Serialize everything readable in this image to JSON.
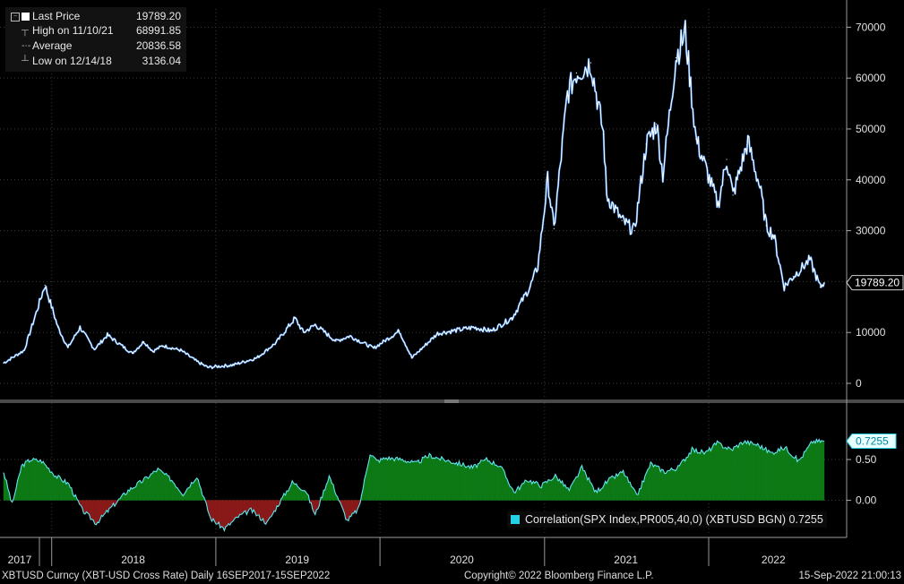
{
  "legend": {
    "last_price_label": "Last Price",
    "last_price_value": "19789.20",
    "high_label": "High on 11/10/21",
    "high_value": "68991.85",
    "average_label": "Average",
    "average_value": "20836.58",
    "low_label": "Low on 12/14/18",
    "low_value": "3136.04"
  },
  "footer": {
    "security": "XBTUSD Curncy (XBT-USD Cross Rate)  Daily 16SEP2017-15SEP2022",
    "copyright": "Copyright© 2022 Bloomberg Finance L.P.",
    "timestamp": "15-Sep-2022 21:00:13"
  },
  "correlation_legend": "Correlation(SPX Index,PR005,40,0) (XBTUSD BGN) 0.7255",
  "colors": {
    "price_line": "#ffffff",
    "price_line_accent": "#2f7de1",
    "corr_positive": "#0e7a16",
    "corr_negative": "#8a1a1a",
    "corr_line": "#5fe6f0",
    "corr_marker": "#24d2e8"
  },
  "chart_data": [
    {
      "type": "line",
      "series": [
        {
          "name": "Last Price",
          "x": [
            "2017-09-16",
            "2017-11-01",
            "2017-12-17",
            "2018-01-15",
            "2018-02-06",
            "2018-03-05",
            "2018-04-06",
            "2018-05-05",
            "2018-06-29",
            "2018-07-25",
            "2018-08-14",
            "2018-09-05",
            "2018-10-15",
            "2018-11-20",
            "2018-12-14",
            "2019-02-08",
            "2019-04-02",
            "2019-05-15",
            "2019-06-26",
            "2019-07-15",
            "2019-08-10",
            "2019-09-25",
            "2019-10-26",
            "2019-12-18",
            "2020-02-13",
            "2020-03-12",
            "2020-05-08",
            "2020-07-27",
            "2020-09-05",
            "2020-10-21",
            "2020-11-30",
            "2020-12-17",
            "2021-01-08",
            "2021-01-22",
            "2021-02-21",
            "2021-03-13",
            "2021-04-14",
            "2021-05-12",
            "2021-05-19",
            "2021-06-22",
            "2021-07-20",
            "2021-08-15",
            "2021-09-07",
            "2021-09-21",
            "2021-10-20",
            "2021-11-10",
            "2021-12-04",
            "2022-01-22",
            "2022-02-10",
            "2022-02-24",
            "2022-03-29",
            "2022-04-25",
            "2022-05-09",
            "2022-05-26",
            "2022-06-18",
            "2022-07-08",
            "2022-08-14",
            "2022-09-06",
            "2022-09-15"
          ],
          "values": [
            4000,
            6500,
            19300,
            11000,
            7000,
            11000,
            6700,
            9500,
            5900,
            8200,
            6300,
            7400,
            6500,
            4300,
            3136,
            3600,
            5000,
            8000,
            12800,
            10000,
            11500,
            8300,
            9300,
            6900,
            10300,
            5000,
            9800,
            11000,
            10300,
            12900,
            19000,
            23000,
            40000,
            30400,
            57000,
            61000,
            63000,
            49000,
            37000,
            32000,
            30000,
            47000,
            51000,
            41000,
            64000,
            68991,
            48000,
            35000,
            44000,
            37000,
            47500,
            38500,
            31000,
            29000,
            19000,
            21000,
            24300,
            18900,
            19789
          ]
        }
      ],
      "ylim": [
        0,
        72000
      ],
      "yticks": [
        0,
        10000,
        20000,
        30000,
        40000,
        50000,
        60000,
        70000
      ],
      "last_value_label": "19789.20",
      "grid": true
    },
    {
      "type": "area",
      "series": [
        {
          "name": "Correlation(SPX Index,PR005,40,0) (XBTUSD BGN)",
          "x": [
            "2017-09-16",
            "2017-10-05",
            "2017-10-26",
            "2017-11-15",
            "2017-12-10",
            "2018-01-10",
            "2018-02-08",
            "2018-03-10",
            "2018-04-10",
            "2018-05-15",
            "2018-06-20",
            "2018-07-25",
            "2018-08-25",
            "2018-09-25",
            "2018-10-20",
            "2018-11-20",
            "2018-12-20",
            "2019-01-20",
            "2019-02-20",
            "2019-03-20",
            "2019-04-25",
            "2019-05-20",
            "2019-06-20",
            "2019-07-20",
            "2019-08-10",
            "2019-09-10",
            "2019-10-20",
            "2019-11-15",
            "2019-12-10",
            "2019-12-25",
            "2020-01-15",
            "2020-02-20",
            "2020-03-20",
            "2020-04-20",
            "2020-05-20",
            "2020-06-25",
            "2020-07-25",
            "2020-08-25",
            "2020-09-25",
            "2020-10-25",
            "2020-11-25",
            "2020-12-25",
            "2021-01-25",
            "2021-02-25",
            "2021-03-25",
            "2021-04-25",
            "2021-05-25",
            "2021-06-25",
            "2021-07-25",
            "2021-08-25",
            "2021-09-25",
            "2021-10-25",
            "2021-11-25",
            "2021-12-25",
            "2022-01-20",
            "2022-02-20",
            "2022-03-20",
            "2022-04-20",
            "2022-05-20",
            "2022-06-20",
            "2022-07-20",
            "2022-08-20",
            "2022-09-15"
          ],
          "values": [
            0.35,
            -0.05,
            0.42,
            0.5,
            0.48,
            0.3,
            0.2,
            -0.12,
            -0.28,
            -0.08,
            0.12,
            0.25,
            0.38,
            0.25,
            0.08,
            0.3,
            -0.22,
            -0.35,
            -0.2,
            -0.12,
            -0.28,
            -0.05,
            0.22,
            0.12,
            -0.18,
            0.3,
            -0.25,
            -0.1,
            0.58,
            0.48,
            0.52,
            0.5,
            0.45,
            0.55,
            0.5,
            0.45,
            0.4,
            0.5,
            0.42,
            0.1,
            0.25,
            0.18,
            0.3,
            0.12,
            0.4,
            0.1,
            0.25,
            0.35,
            0.05,
            0.45,
            0.35,
            0.4,
            0.62,
            0.58,
            0.7,
            0.62,
            0.72,
            0.68,
            0.58,
            0.65,
            0.48,
            0.72,
            0.7255
          ]
        }
      ],
      "ylim": [
        -0.4,
        0.95
      ],
      "yticks": [
        0.0,
        0.5
      ],
      "yticklabels": [
        "0.00",
        "0.50"
      ],
      "last_value_label": "0.7255"
    }
  ],
  "xaxis": {
    "labels": [
      "2017",
      "2018",
      "2019",
      "2020",
      "2021",
      "2022"
    ]
  }
}
